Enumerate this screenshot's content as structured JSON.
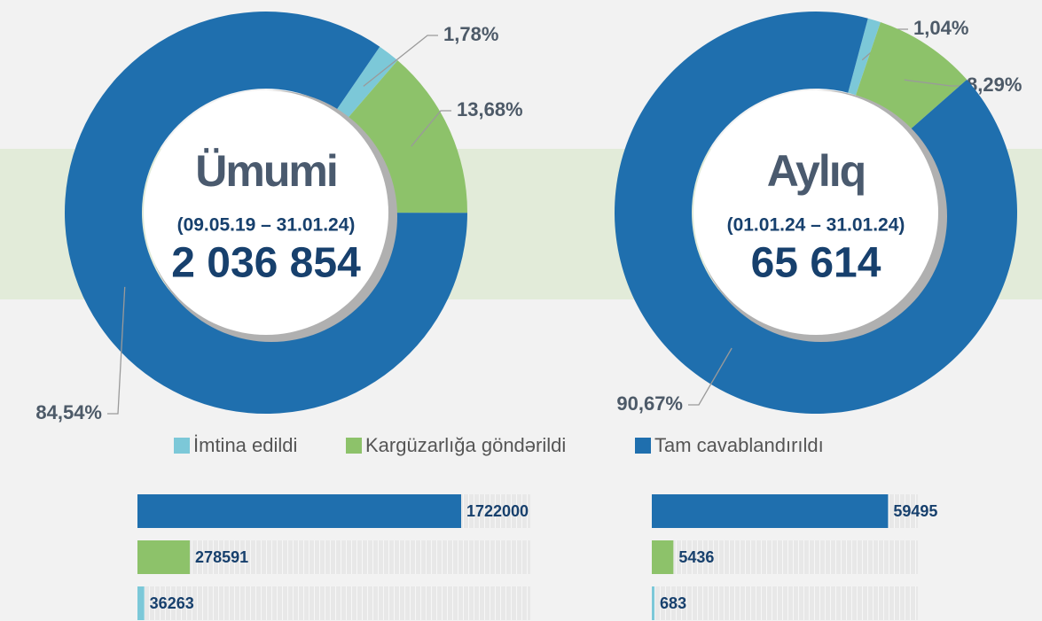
{
  "chart_data": [
    {
      "type": "donut",
      "title": "Ümumi",
      "subtitle": "(09.05.19 – 31.01.24)",
      "total": "2 036 854",
      "categories": [
        "İmtina edildi",
        "Kargüzarlığa göndərildi",
        "Tam cavablandırıldı"
      ],
      "values": [
        1.78,
        13.68,
        84.54
      ],
      "value_labels": [
        "1,78%",
        "13,68%",
        "84,54%"
      ],
      "colors": [
        "#7cc8d8",
        "#8dc26a",
        "#1f6fae"
      ]
    },
    {
      "type": "donut",
      "title": "Aylıq",
      "subtitle": "(01.01.24 – 31.01.24)",
      "total": "65 614",
      "categories": [
        "İmtina edildi",
        "Kargüzarlığa göndərildi",
        "Tam cavablandırıldı"
      ],
      "values": [
        1.04,
        8.29,
        90.67
      ],
      "value_labels": [
        "1,04%",
        "8,29%",
        "90,67%"
      ],
      "colors": [
        "#7cc8d8",
        "#8dc26a",
        "#1f6fae"
      ]
    },
    {
      "type": "hbar",
      "values": [
        1722000,
        278591,
        36263
      ],
      "colors": [
        "#1f6fae",
        "#8dc26a",
        "#7cc8d8"
      ],
      "xlim": [
        0,
        2090000
      ]
    },
    {
      "type": "hbar",
      "values": [
        59495,
        5436,
        683
      ],
      "colors": [
        "#1f6fae",
        "#8dc26a",
        "#7cc8d8"
      ],
      "xlim": [
        0,
        67000
      ]
    }
  ]
}
